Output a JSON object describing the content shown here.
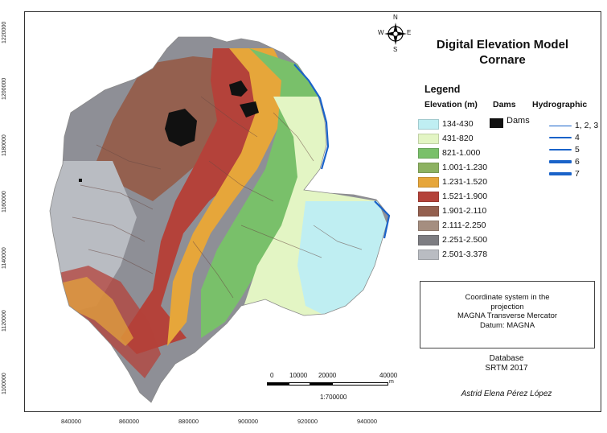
{
  "map": {
    "title_line1": "Digital Elevation Model",
    "title_line2": "Cornare",
    "y_ticks": [
      "1220000",
      "1200000",
      "1180000",
      "1160000",
      "1140000",
      "1120000",
      "1100000"
    ],
    "x_ticks": [
      "840000",
      "860000",
      "880000",
      "900000",
      "920000",
      "940000"
    ],
    "compass": {
      "n": "N",
      "s": "S",
      "e": "E",
      "w": "W",
      "icon": "compass-rose-icon"
    }
  },
  "legend": {
    "title": "Legend",
    "elevation_heading": "Elevation (m)",
    "dams_heading": "Dams",
    "hydro_heading": "Hydrographic",
    "elevation_classes": [
      {
        "label": "134-430",
        "color": "#bfeef2"
      },
      {
        "label": "431-820",
        "color": "#e3f5c4"
      },
      {
        "label": "821-1.000",
        "color": "#79c06a"
      },
      {
        "label": "1.001-1.230",
        "color": "#8db261"
      },
      {
        "label": "1.231-1.520",
        "color": "#e6a63a"
      },
      {
        "label": "1.521-1.900",
        "color": "#b4423a"
      },
      {
        "label": "1.901-2.110",
        "color": "#94604f"
      },
      {
        "label": "2.111-2.250",
        "color": "#a58e80"
      },
      {
        "label": "2.251-2.500",
        "color": "#7d7d82"
      },
      {
        "label": "2.501-3.378",
        "color": "#b9bcc2"
      }
    ],
    "dams_label": "Dams",
    "dams_color": "#111111",
    "hydro_classes": [
      "1, 2, 3",
      "4",
      "5",
      "6",
      "7"
    ],
    "hydro_color": "#1a63c9"
  },
  "coordinate_box": {
    "line1": "Coordinate system in the",
    "line2": "projection",
    "line3": "MAGNA Transverse Mercator",
    "line4": "Datum: MAGNA"
  },
  "database": {
    "line1": "Database",
    "line2": "SRTM 2017"
  },
  "author": "Astrid Elena Pérez López",
  "scalebar": {
    "ticks": [
      "0",
      "10000",
      "20000",
      "40000"
    ],
    "unit": "m",
    "scale": "1:700000"
  }
}
